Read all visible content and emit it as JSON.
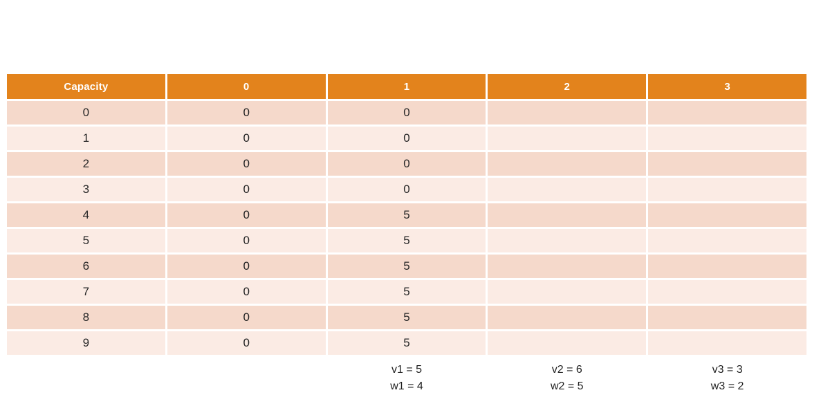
{
  "colors": {
    "header_bg": "#E3831C",
    "row_band_dark": "#F5D9CB",
    "row_band_light": "#FBEBE4",
    "header_text": "#FFFFFF",
    "body_text": "#262626",
    "background": "#FFFFFF"
  },
  "items": [
    {
      "v": "v1 = 5",
      "w": "w1 = 4"
    },
    {
      "v": "v2 = 6",
      "w": "w2 = 5"
    },
    {
      "v": "v3 = 3",
      "w": "w3 = 2"
    }
  ],
  "chart_data": {
    "type": "table",
    "columns": [
      "Capacity",
      "0",
      "1",
      "2",
      "3"
    ],
    "rows": [
      [
        "0",
        "0",
        "0",
        "",
        ""
      ],
      [
        "1",
        "0",
        "0",
        "",
        ""
      ],
      [
        "2",
        "0",
        "0",
        "",
        ""
      ],
      [
        "3",
        "0",
        "0",
        "",
        ""
      ],
      [
        "4",
        "0",
        "5",
        "",
        ""
      ],
      [
        "5",
        "0",
        "5",
        "",
        ""
      ],
      [
        "6",
        "0",
        "5",
        "",
        ""
      ],
      [
        "7",
        "0",
        "5",
        "",
        ""
      ],
      [
        "8",
        "0",
        "5",
        "",
        ""
      ],
      [
        "9",
        "0",
        "5",
        "",
        ""
      ]
    ],
    "annotations": [
      "v1 = 5",
      "w1 = 4",
      "v2 = 6",
      "w2 = 5",
      "v3 = 3",
      "w3 = 2"
    ],
    "item_parameters": [
      {
        "item": 1,
        "value": 5,
        "weight": 4
      },
      {
        "item": 2,
        "value": 6,
        "weight": 5
      },
      {
        "item": 3,
        "value": 3,
        "weight": 2
      }
    ],
    "layout": {
      "banded_rows": true,
      "header_position": "top",
      "empty_columns": [
        "2",
        "3"
      ]
    }
  }
}
